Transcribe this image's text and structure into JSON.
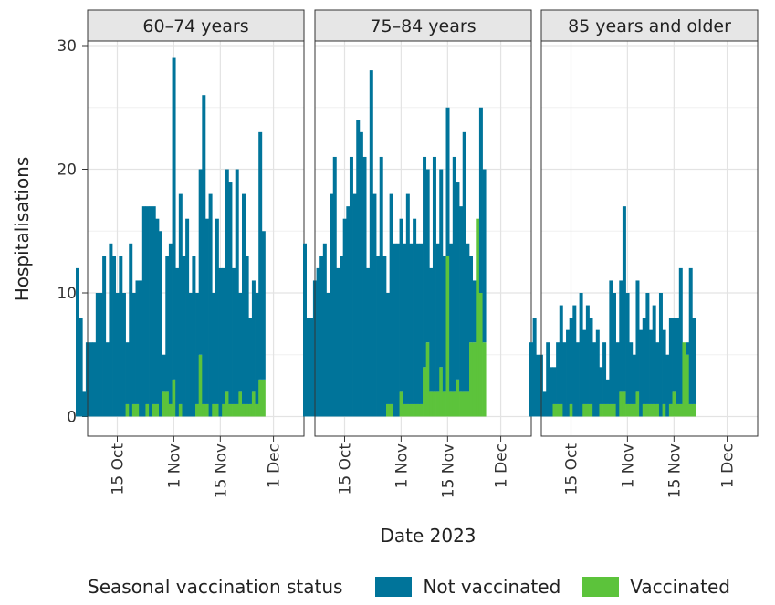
{
  "chart_data": {
    "type": "bar",
    "stacked": true,
    "ylabel": "Hospitalisations",
    "xlabel": "Date 2023",
    "ylim": [
      0,
      30
    ],
    "yticks": [
      0,
      10,
      20,
      30
    ],
    "xticks": [
      {
        "label": "15 Oct",
        "day": 14
      },
      {
        "label": "1 Nov",
        "day": 31
      },
      {
        "label": "15 Nov",
        "day": 45
      },
      {
        "label": "1 Dec",
        "day": 61
      }
    ],
    "x_start": "2023-10-01",
    "legend": {
      "title": "Seasonal vaccination status",
      "position": "bottom",
      "items": [
        {
          "key": "not_vaccinated",
          "label": "Not vaccinated",
          "color": "#00749a"
        },
        {
          "key": "vaccinated",
          "label": "Vaccinated",
          "color": "#5cc33b"
        }
      ]
    },
    "panels": [
      {
        "title": "60–74 years",
        "start_day": 2,
        "totals": [
          12,
          8,
          2,
          6,
          6,
          6,
          10,
          10,
          13,
          6,
          14,
          13,
          10,
          13,
          10,
          6,
          14,
          10,
          11,
          11,
          17,
          17,
          17,
          17,
          16,
          15,
          5,
          13,
          14,
          29,
          12,
          18,
          13,
          16,
          10,
          13,
          10,
          20,
          26,
          16,
          18,
          10,
          16,
          12,
          12,
          20,
          19,
          12,
          20,
          10,
          18,
          13,
          8,
          11,
          10,
          23,
          15
        ],
        "vaccinated": [
          0,
          0,
          0,
          0,
          0,
          0,
          0,
          0,
          0,
          0,
          0,
          0,
          0,
          0,
          0,
          1,
          0,
          1,
          1,
          0,
          0,
          1,
          0,
          1,
          1,
          0,
          2,
          2,
          1,
          3,
          0,
          1,
          0,
          0,
          0,
          0,
          1,
          5,
          1,
          1,
          0,
          1,
          1,
          0,
          1,
          2,
          1,
          1,
          1,
          2,
          1,
          1,
          1,
          2,
          1,
          3,
          3
        ]
      },
      {
        "title": "75–84 years",
        "start_day": 2,
        "totals": [
          14,
          8,
          8,
          11,
          12,
          13,
          14,
          10,
          18,
          21,
          12,
          13,
          16,
          17,
          21,
          18,
          24,
          23,
          21,
          12,
          28,
          18,
          13,
          21,
          13,
          10,
          18,
          14,
          14,
          16,
          14,
          18,
          14,
          16,
          14,
          14,
          21,
          20,
          12,
          21,
          14,
          20,
          13,
          25,
          14,
          21,
          19,
          17,
          23,
          14,
          13,
          11,
          16,
          25,
          20
        ],
        "vaccinated": [
          0,
          0,
          0,
          0,
          0,
          0,
          0,
          0,
          0,
          0,
          0,
          0,
          0,
          0,
          0,
          0,
          0,
          0,
          0,
          0,
          0,
          0,
          0,
          0,
          0,
          1,
          1,
          0,
          0,
          2,
          1,
          1,
          1,
          1,
          1,
          1,
          4,
          6,
          2,
          2,
          2,
          4,
          2,
          13,
          2,
          2,
          3,
          2,
          2,
          2,
          6,
          6,
          16,
          10,
          6
        ]
      },
      {
        "title": "85 years and older",
        "start_day": 2,
        "totals": [
          6,
          8,
          5,
          5,
          2,
          6,
          4,
          4,
          6,
          9,
          6,
          7,
          8,
          9,
          6,
          10,
          7,
          9,
          8,
          6,
          7,
          4,
          6,
          3,
          11,
          10,
          6,
          11,
          17,
          10,
          6,
          5,
          11,
          7,
          8,
          10,
          7,
          9,
          6,
          10,
          7,
          5,
          8,
          8,
          8,
          12,
          4,
          6,
          12,
          8
        ],
        "vaccinated": [
          0,
          0,
          0,
          0,
          0,
          0,
          0,
          1,
          1,
          1,
          0,
          0,
          1,
          0,
          0,
          0,
          1,
          1,
          1,
          0,
          0,
          1,
          1,
          1,
          1,
          1,
          0,
          2,
          2,
          1,
          1,
          1,
          2,
          0,
          1,
          1,
          1,
          1,
          1,
          0,
          1,
          0,
          1,
          2,
          1,
          1,
          6,
          5,
          1,
          1
        ]
      }
    ]
  }
}
